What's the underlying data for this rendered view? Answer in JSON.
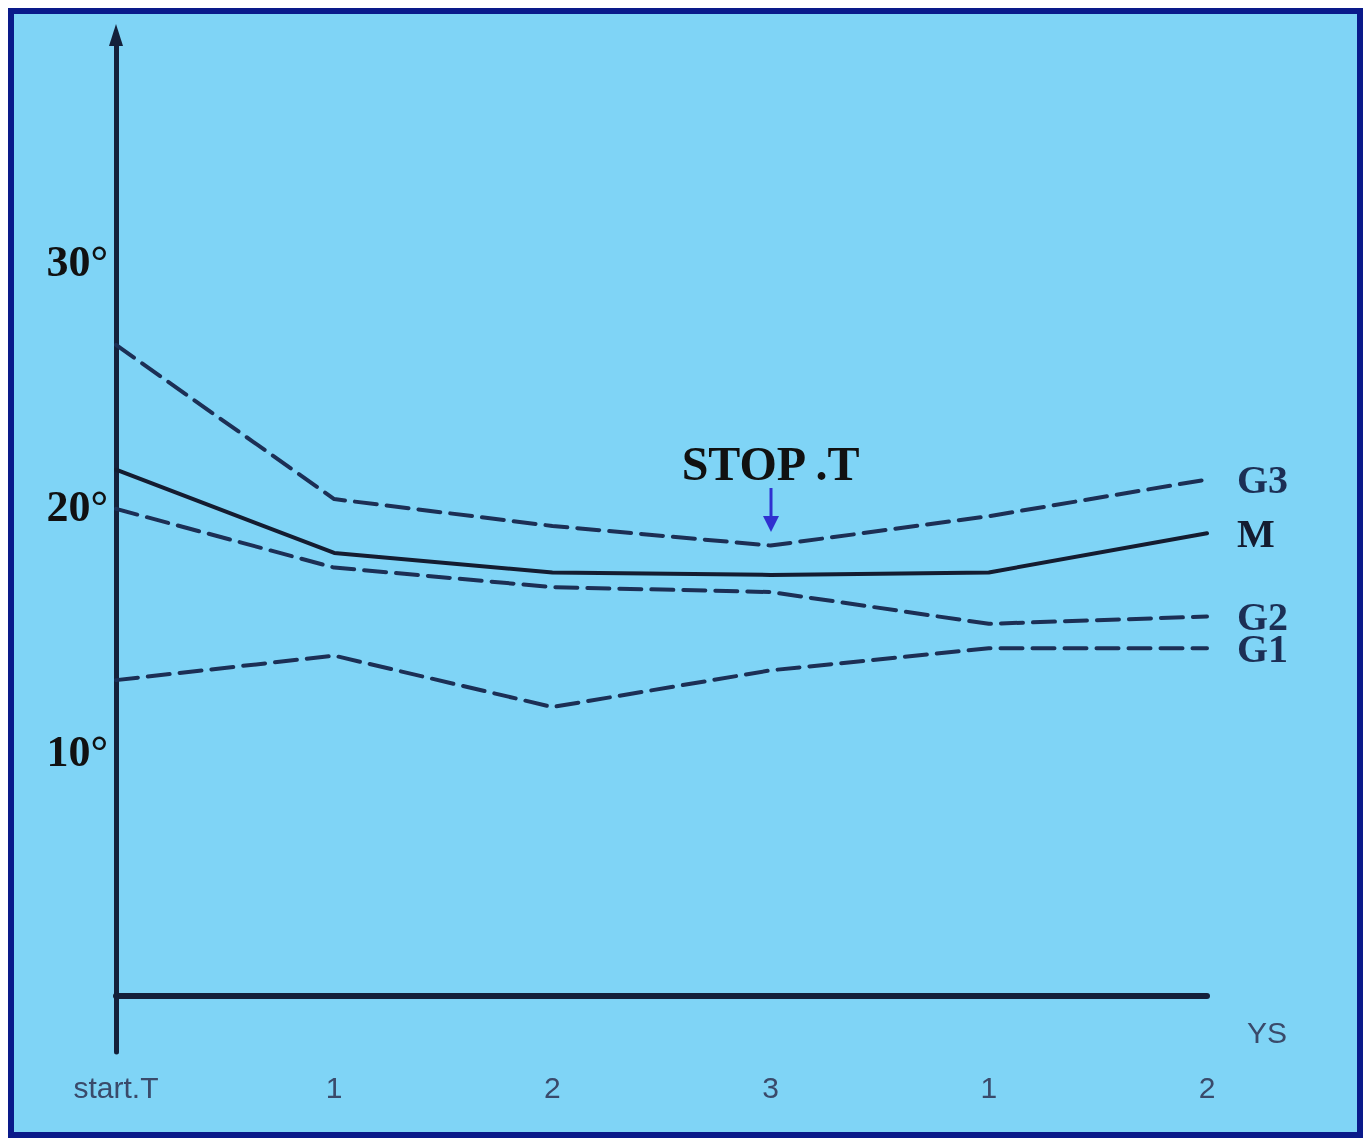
{
  "chart_data": {
    "type": "line",
    "categories": [
      "start.T",
      "1",
      "2",
      "3",
      "1",
      "2"
    ],
    "xlabel": "YS",
    "ylim": [
      -2.3,
      38.9
    ],
    "yticks": [
      {
        "value": 10,
        "label": "10°"
      },
      {
        "value": 20,
        "label": "20°"
      },
      {
        "value": 30,
        "label": "30°"
      }
    ],
    "series": [
      {
        "name": "G3",
        "color": "#1c2f55",
        "line_style": "dashed",
        "values": [
          26.6,
          20.3,
          19.2,
          18.4,
          19.6,
          21.1
        ]
      },
      {
        "name": "M",
        "color": "#141c30",
        "line_style": "solid",
        "values": [
          21.5,
          18.1,
          17.3,
          17.2,
          17.3,
          18.9
        ]
      },
      {
        "name": "G2",
        "color": "#1c2f55",
        "line_style": "dashed",
        "values": [
          19.9,
          17.5,
          16.7,
          16.5,
          15.2,
          15.5
        ]
      },
      {
        "name": "G1",
        "color": "#1c2f55",
        "line_style": "dashed",
        "values": [
          12.9,
          13.9,
          11.8,
          13.3,
          14.2,
          14.2
        ]
      }
    ],
    "annotations": [
      {
        "text": "STOP .T",
        "x": "3",
        "y": 18.4
      }
    ],
    "grid": false,
    "legend": false,
    "marker": "none"
  }
}
